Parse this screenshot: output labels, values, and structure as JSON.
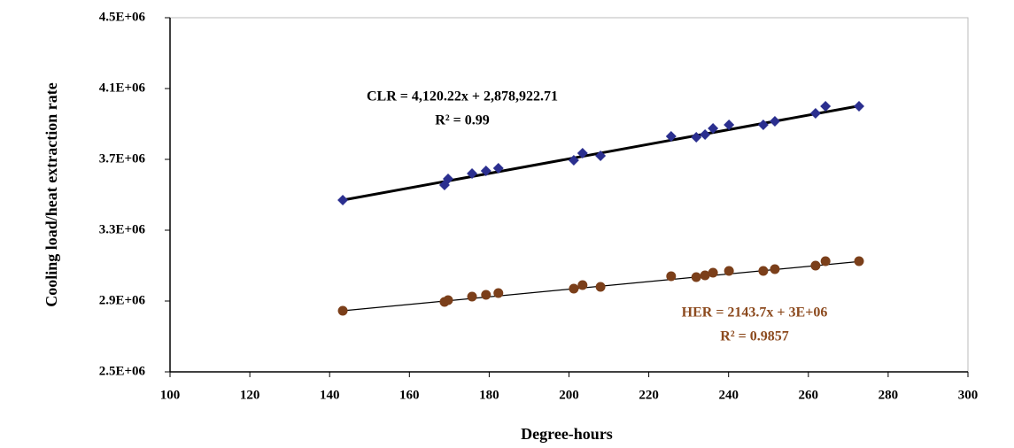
{
  "chart_data": {
    "type": "scatter",
    "x_label": "Degree-hours",
    "y_label": "Cooling load/heat extraction rate",
    "x": [
      143.3,
      168.8,
      169.7,
      175.7,
      179.2,
      182.3,
      201.2,
      203.4,
      207.9,
      225.6,
      231.9,
      234.1,
      236.1,
      240.1,
      248.7,
      251.6,
      261.8,
      264.3,
      272.7
    ],
    "series": [
      {
        "name": "CLR",
        "color": "#2b2f8f",
        "marker": "diamond",
        "values": [
          3470000,
          3555000,
          3590000,
          3620000,
          3635000,
          3650000,
          3695000,
          3735000,
          3720000,
          3830000,
          3825000,
          3840000,
          3875000,
          3895000,
          3895000,
          3915000,
          3960000,
          4000000,
          4000000
        ],
        "trendline": {
          "x": [
            143.3,
            272.7
          ],
          "values": [
            3470000,
            4002000
          ],
          "color": "#000000"
        }
      },
      {
        "name": "HER",
        "color": "#7b3f1a",
        "marker": "circle",
        "values": [
          2845000,
          2895000,
          2905000,
          2925000,
          2935000,
          2945000,
          2970000,
          2990000,
          2980000,
          3040000,
          3035000,
          3045000,
          3060000,
          3070000,
          3070000,
          3080000,
          3100000,
          3125000,
          3125000
        ],
        "trendline": {
          "x": [
            143.3,
            272.7
          ],
          "values": [
            2845000,
            3123000
          ],
          "color": "#000000"
        }
      }
    ],
    "annotations": [
      {
        "text": "CLR = 4,120.22x + 2,878,922.71",
        "color": "#000000"
      },
      {
        "text": "R² = 0.99",
        "color": "#000000"
      },
      {
        "text": "HER = 2143.7x + 3E+06",
        "color": "#8c4a1e"
      },
      {
        "text": "R² = 0.9857",
        "color": "#8c4a1e"
      }
    ],
    "xlim": [
      100,
      300
    ],
    "xticks": [
      100,
      120,
      140,
      160,
      180,
      200,
      220,
      240,
      260,
      280,
      300
    ],
    "ylim": [
      2500000,
      4500000
    ],
    "yticks": [
      {
        "value": 2500000,
        "label": "2.5E+06"
      },
      {
        "value": 2900000,
        "label": "2.9E+06"
      },
      {
        "value": 3300000,
        "label": "3.3E+06"
      },
      {
        "value": 3700000,
        "label": "3.7E+06"
      },
      {
        "value": 4100000,
        "label": "4.1E+06"
      },
      {
        "value": 4500000,
        "label": "4.5E+06"
      }
    ]
  }
}
